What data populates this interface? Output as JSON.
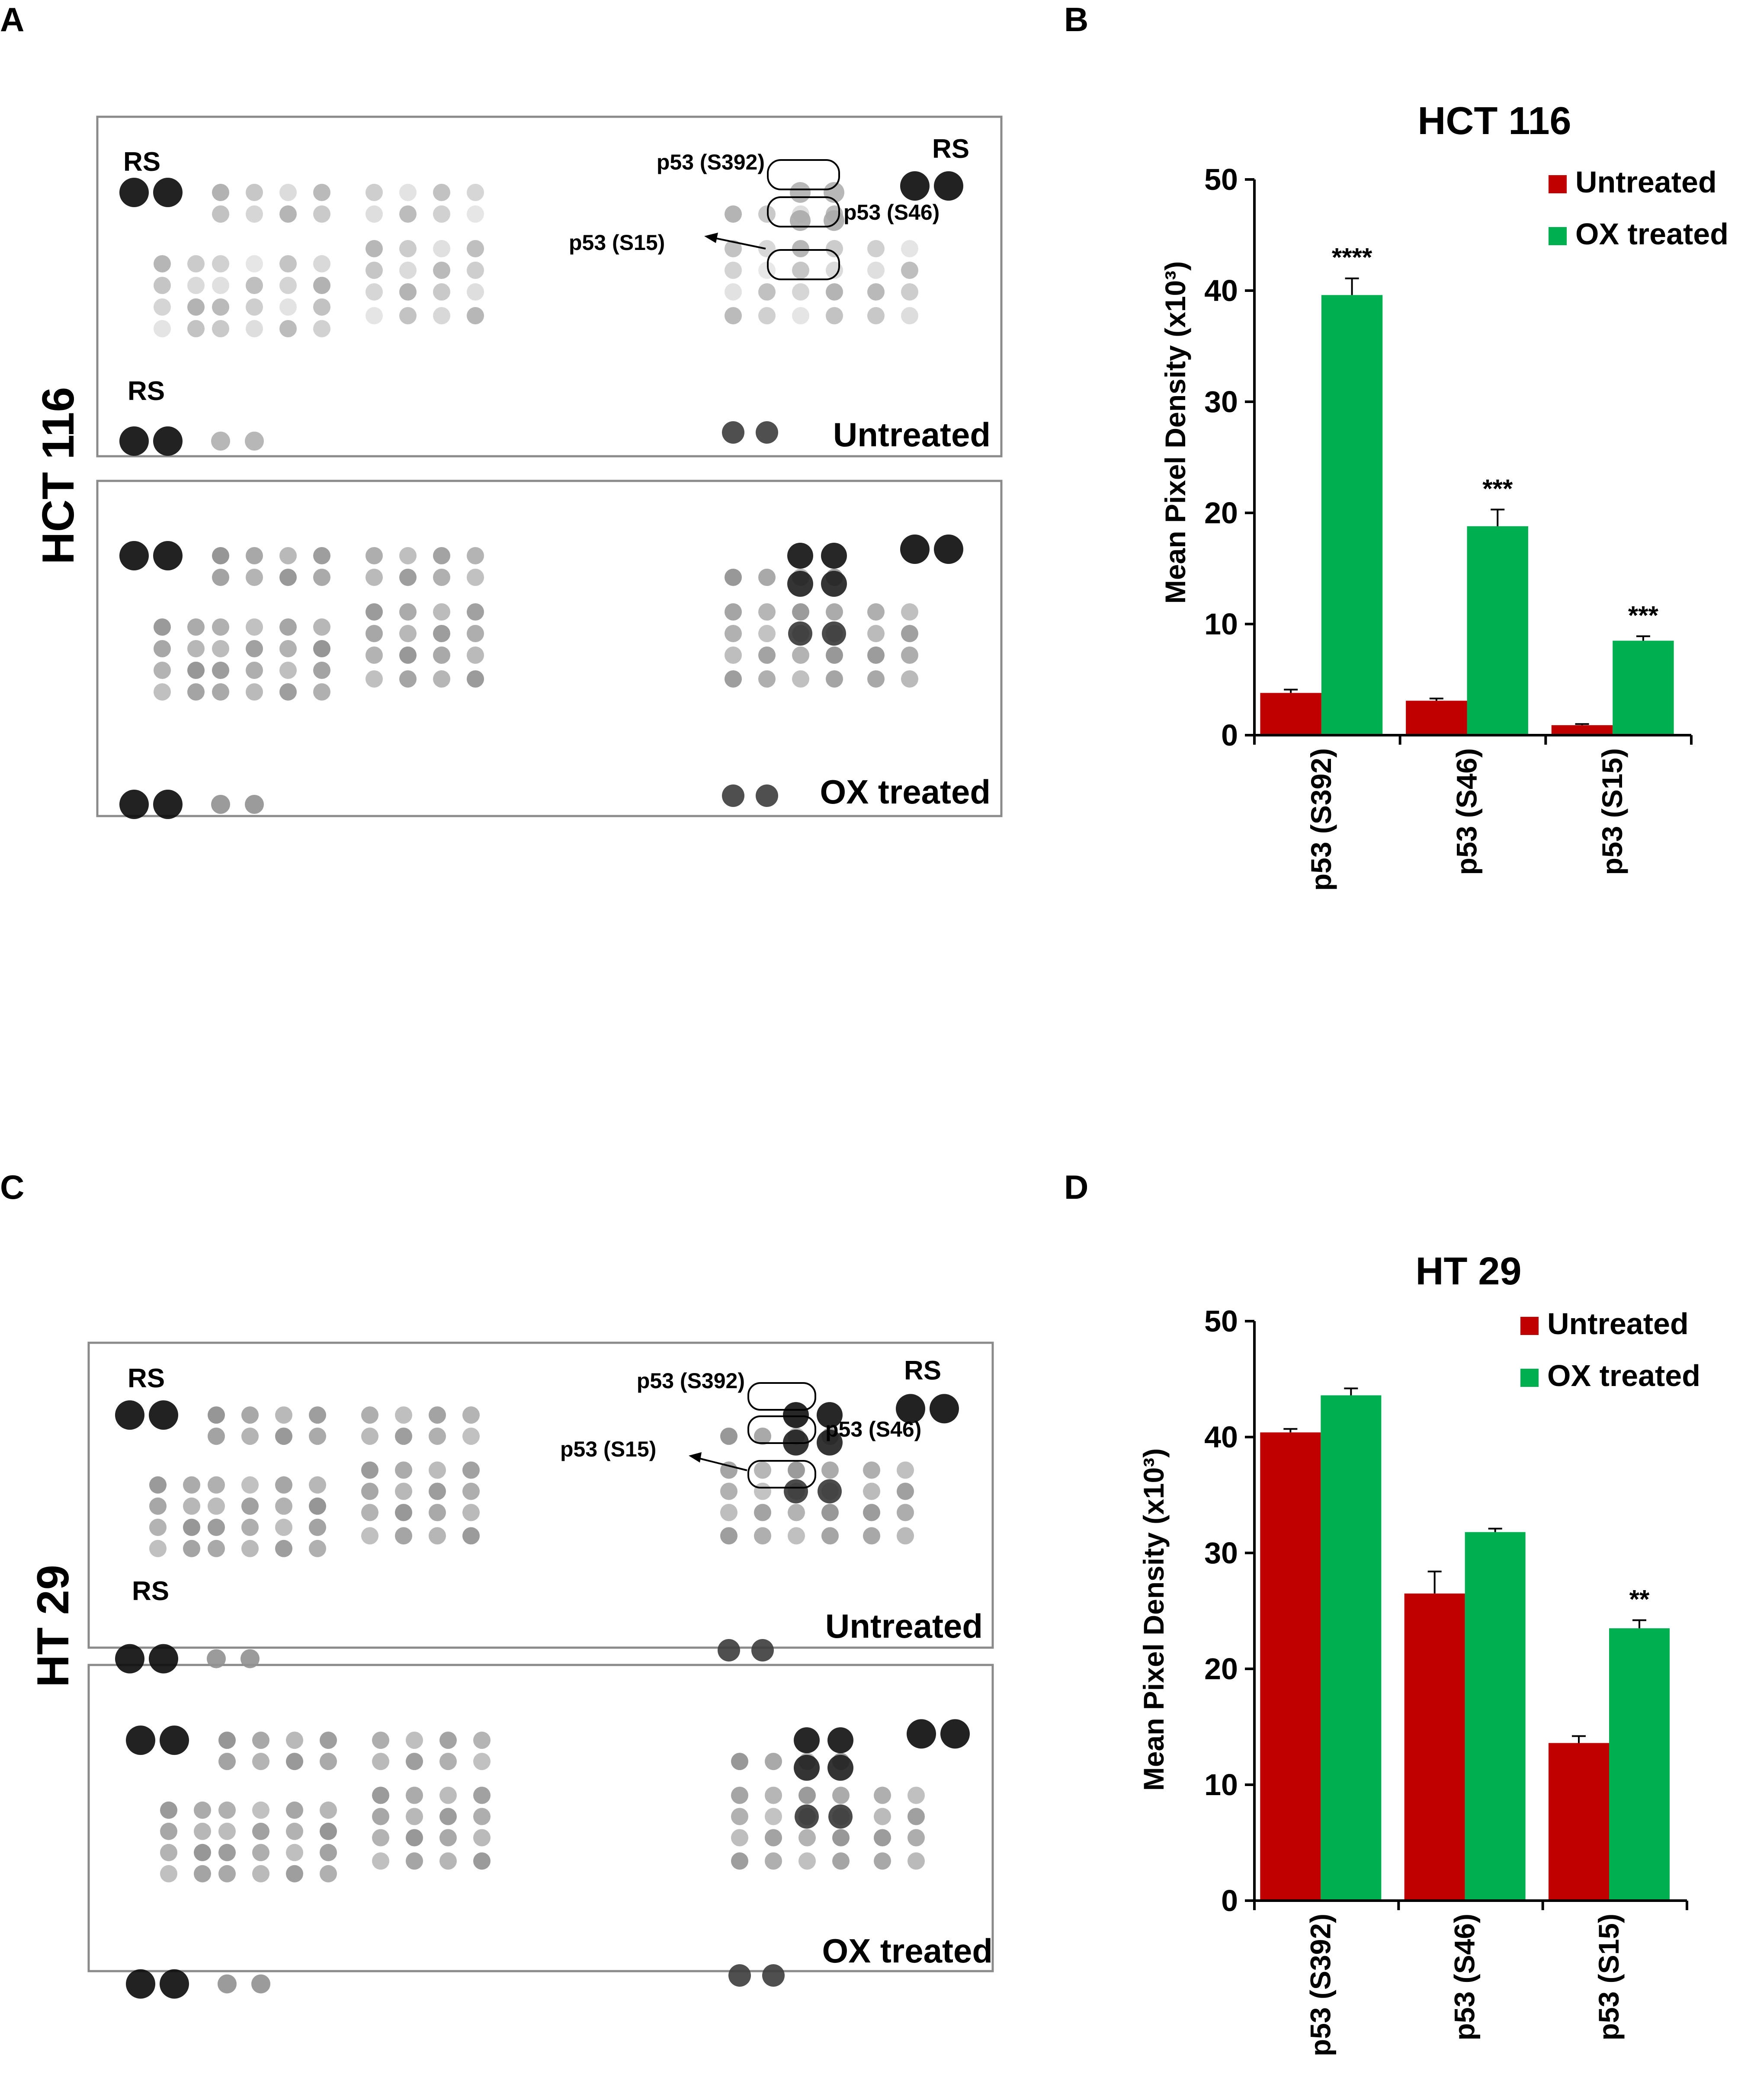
{
  "panels": {
    "a": "A",
    "b": "B",
    "c": "C",
    "d": "D"
  },
  "blots": [
    {
      "cell_line": "HCT 116",
      "top_condition": "Untreated",
      "bottom_condition": "OX treated",
      "reference_label": "RS",
      "annotations": {
        "s392": "p53 (S392)",
        "s46": "p53 (S46)",
        "s15": "p53 (S15)"
      }
    },
    {
      "cell_line": "HT 29",
      "top_condition": "Untreated",
      "bottom_condition": "OX treated",
      "reference_label": "RS",
      "annotations": {
        "s392": "p53 (S392)",
        "s46": "p53 (S46)",
        "s15": "p53 (S15)"
      }
    }
  ],
  "chart_data": [
    {
      "type": "bar",
      "title": "HCT 116",
      "ylabel": "Mean Pixel Density (x10³)",
      "xlabel": "",
      "ylim": [
        0,
        50
      ],
      "yticks": [
        0,
        10,
        20,
        30,
        40,
        50
      ],
      "categories": [
        "p53 (S392)",
        "p53 (S46)",
        "p53 (S15)"
      ],
      "series": [
        {
          "name": "Untreated",
          "color": "#c00000",
          "values": [
            3.8,
            3.1,
            0.9
          ],
          "errors": [
            0.3,
            0.2,
            0.1
          ]
        },
        {
          "name": "OX treated",
          "color": "#00b050",
          "values": [
            39.6,
            18.8,
            8.5
          ],
          "errors": [
            1.5,
            1.5,
            0.4
          ]
        }
      ],
      "significance": [
        "****",
        "***",
        "***"
      ],
      "legend": "top-right",
      "grid": false
    },
    {
      "type": "bar",
      "title": "HT 29",
      "ylabel": "Mean Pixel Density (x10³)",
      "xlabel": "",
      "ylim": [
        0,
        50
      ],
      "yticks": [
        0,
        10,
        20,
        30,
        40,
        50
      ],
      "categories": [
        "p53 (S392)",
        "p53 (S46)",
        "p53 (S15)"
      ],
      "series": [
        {
          "name": "Untreated",
          "color": "#c00000",
          "values": [
            40.4,
            26.5,
            13.6
          ],
          "errors": [
            0.3,
            1.9,
            0.6
          ]
        },
        {
          "name": "OX treated",
          "color": "#00b050",
          "values": [
            43.6,
            31.8,
            23.5
          ],
          "errors": [
            0.6,
            0.3,
            0.7
          ]
        }
      ],
      "significance": [
        "",
        "",
        "**"
      ],
      "legend": "top-right",
      "grid": false
    }
  ]
}
